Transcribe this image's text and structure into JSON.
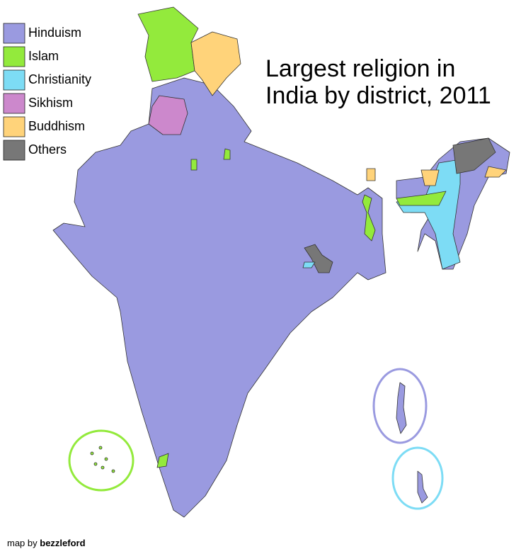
{
  "title": [
    "Largest religion in",
    "India by district, 2011"
  ],
  "legend": [
    {
      "label": "Hinduism",
      "color": "#9a9ae0"
    },
    {
      "label": "Islam",
      "color": "#93ea3c"
    },
    {
      "label": "Christianity",
      "color": "#7ddcf5"
    },
    {
      "label": "Sikhism",
      "color": "#cc88cc"
    },
    {
      "label": "Buddhism",
      "color": "#ffd37a"
    },
    {
      "label": "Others",
      "color": "#777777"
    }
  ],
  "credit": {
    "prefix": "map by",
    "author": "bezzleford"
  }
}
